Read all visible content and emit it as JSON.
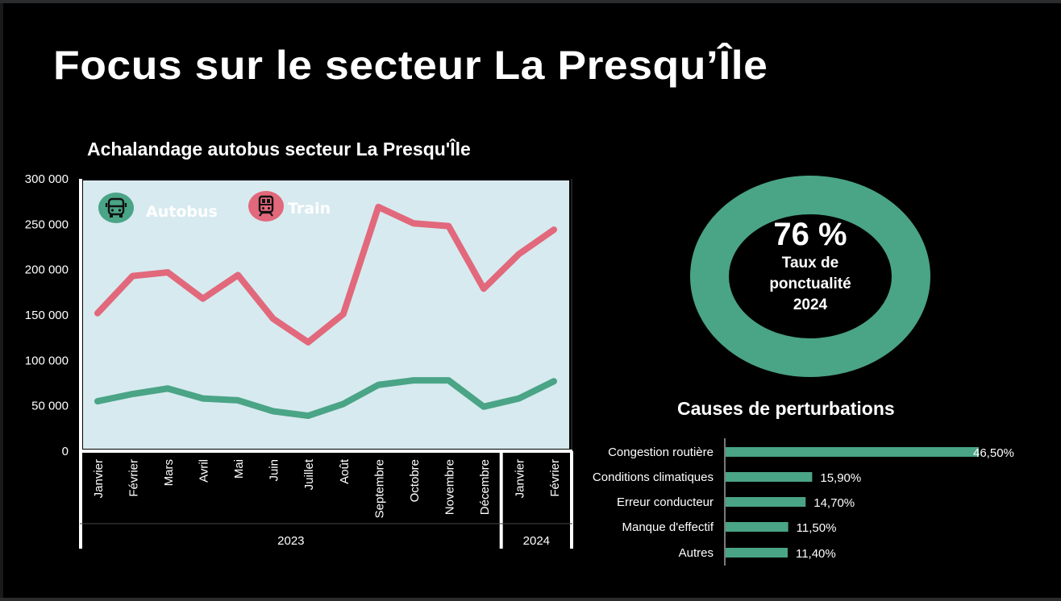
{
  "slide": {
    "title": "Focus sur le secteur La Presqu’Île"
  },
  "colors": {
    "background": "#000000",
    "plot_background": "#d7eaef",
    "autobus": "#4aa486",
    "train": "#e2687c",
    "text": "#ffffff",
    "icon": "#111111"
  },
  "legend": {
    "autobus_label": "Autobus",
    "autobus_icon": "bus-icon",
    "train_label": "Train",
    "train_icon": "train-icon"
  },
  "punctuality": {
    "value_label": "76 %",
    "value": 76,
    "label_lines": [
      "Taux de",
      "ponctualité",
      "2024"
    ]
  },
  "chart_data": [
    {
      "type": "line",
      "title": "Achalandage autobus secteur La Presqu'Île",
      "xlabel": "",
      "ylabel": "",
      "ylim": [
        0,
        300000
      ],
      "y_ticks": [
        0,
        50000,
        100000,
        150000,
        200000,
        250000,
        300000
      ],
      "y_tick_labels": [
        "0",
        "50 000",
        "100 000",
        "150 000",
        "200 000",
        "250 000",
        "300 000"
      ],
      "categories": [
        "Janvier",
        "Février",
        "Mars",
        "Avril",
        "Mai",
        "Juin",
        "Juillet",
        "Août",
        "Septembre",
        "Octobre",
        "Novembre",
        "Décembre",
        "Janvier",
        "Février"
      ],
      "category_groups": [
        {
          "label": "2023",
          "count": 12
        },
        {
          "label": "2024",
          "count": 2
        }
      ],
      "grid": false,
      "legend_position": "top-left",
      "series": [
        {
          "name": "Autobus",
          "color": "#4aa486",
          "values": [
            55000,
            63000,
            69000,
            58000,
            56000,
            44000,
            39000,
            52000,
            73000,
            78000,
            78000,
            49000,
            58000,
            77000
          ]
        },
        {
          "name": "Train",
          "color": "#e2687c",
          "values": [
            152000,
            193000,
            197000,
            168000,
            194000,
            146000,
            120000,
            151000,
            269000,
            251000,
            248000,
            179000,
            217000,
            244000
          ]
        }
      ]
    },
    {
      "type": "pie",
      "title": "Taux de ponctualité 2024",
      "values": [
        76
      ],
      "labels": [
        "76 %"
      ],
      "style": "donut"
    },
    {
      "type": "bar",
      "orientation": "horizontal",
      "title": "Causes de perturbations",
      "categories": [
        "Congestion routière",
        "Conditions climatiques",
        "Erreur conducteur",
        "Manque d'effectif",
        "Autres"
      ],
      "values": [
        46.5,
        15.9,
        14.7,
        11.5,
        11.4
      ],
      "value_labels": [
        "46,50%",
        "15,90%",
        "14,70%",
        "11,50%",
        "11,40%"
      ],
      "xlim": [
        0,
        50
      ],
      "color": "#4aa486"
    }
  ]
}
